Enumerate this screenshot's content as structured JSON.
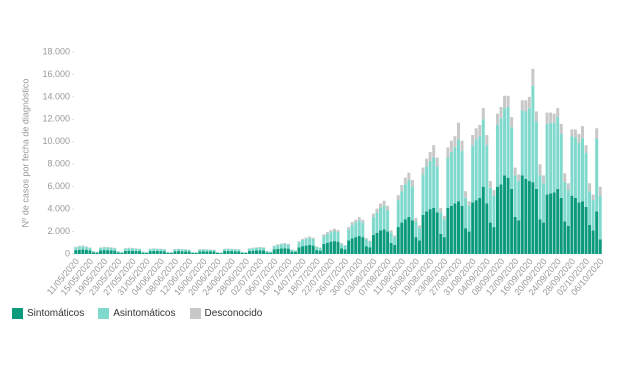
{
  "chart_data": {
    "type": "bar",
    "stacked": true,
    "grid": false,
    "y_label": "Nº de casos por fecha de diagnóstico",
    "legend_position": "bottom-left",
    "ylim": [
      0,
      18000
    ],
    "yticks": [
      0,
      {
        "value": 2000,
        "label": "2.000"
      },
      {
        "value": 4000,
        "label": "4.000"
      },
      {
        "value": 6000,
        "label": "6.000"
      },
      {
        "value": 8000,
        "label": "8.000"
      },
      {
        "value": 10000,
        "label": "10.000"
      },
      {
        "value": 12000,
        "label": "12.000"
      },
      {
        "value": 14000,
        "label": "14.000"
      },
      {
        "value": 16000,
        "label": "16.000"
      },
      {
        "value": 18000,
        "label": "18.000"
      }
    ],
    "categories": [
      "11/05/2020",
      null,
      null,
      null,
      "15/05/2020",
      null,
      null,
      null,
      "19/05/2020",
      null,
      null,
      null,
      "23/05/2020",
      null,
      null,
      null,
      "27/05/2020",
      null,
      null,
      null,
      "31/05/2020",
      null,
      null,
      null,
      "04/06/2020",
      null,
      null,
      null,
      "08/06/2020",
      null,
      null,
      null,
      "12/06/2020",
      null,
      null,
      null,
      "16/06/2020",
      null,
      null,
      null,
      "20/06/2020",
      null,
      null,
      null,
      "24/06/2020",
      null,
      null,
      null,
      "28/06/2020",
      null,
      null,
      null,
      "02/07/2020",
      null,
      null,
      null,
      "06/07/2020",
      null,
      null,
      null,
      "10/07/2020",
      null,
      null,
      null,
      "14/07/2020",
      null,
      null,
      null,
      "18/07/2020",
      null,
      null,
      null,
      "22/07/2020",
      null,
      null,
      null,
      "26/07/2020",
      null,
      null,
      null,
      "30/07/2020",
      null,
      null,
      null,
      "03/08/2020",
      null,
      null,
      null,
      "07/08/2020",
      null,
      null,
      null,
      "11/08/2020",
      null,
      null,
      null,
      "15/08/2020",
      null,
      null,
      null,
      "19/08/2020",
      null,
      null,
      null,
      "23/08/2020",
      null,
      null,
      null,
      "27/08/2020",
      null,
      null,
      null,
      "31/08/2020",
      null,
      null,
      null,
      "04/09/2020",
      null,
      null,
      null,
      "08/09/2020",
      null,
      null,
      null,
      "12/09/2020",
      null,
      null,
      null,
      "16/09/2020",
      null,
      null,
      null,
      "20/09/2020",
      null,
      null,
      null,
      "24/09/2020",
      null,
      null,
      null,
      "28/09/2020",
      null,
      null,
      null,
      "02/10/2020",
      null,
      null,
      null,
      "06/10/2020"
    ],
    "series": [
      {
        "name": "Sintomáticos",
        "color": "#0b9a7b",
        "values": [
          350,
          380,
          400,
          360,
          320,
          150,
          120,
          320,
          350,
          340,
          330,
          300,
          130,
          110,
          280,
          300,
          290,
          280,
          260,
          120,
          100,
          260,
          280,
          270,
          260,
          240,
          110,
          90,
          250,
          260,
          250,
          240,
          230,
          100,
          90,
          240,
          250,
          240,
          230,
          220,
          100,
          80,
          260,
          270,
          260,
          250,
          240,
          110,
          90,
          280,
          300,
          320,
          330,
          320,
          150,
          120,
          400,
          450,
          500,
          520,
          480,
          220,
          180,
          600,
          700,
          750,
          800,
          750,
          350,
          300,
          900,
          1000,
          1100,
          1150,
          1100,
          500,
          420,
          1200,
          1400,
          1500,
          1600,
          1500,
          700,
          600,
          1700,
          1900,
          2100,
          2200,
          2000,
          1000,
          800,
          2400,
          2800,
          3100,
          3300,
          3000,
          1500,
          1200,
          3500,
          3800,
          4000,
          4100,
          3700,
          1800,
          1500,
          4100,
          4300,
          4500,
          4700,
          4300,
          2300,
          2000,
          4600,
          4800,
          5000,
          6000,
          4500,
          2800,
          2400,
          6000,
          6200,
          7000,
          6800,
          5800,
          3300,
          3000,
          7000,
          6700,
          6500,
          6400,
          5800,
          3100,
          2800,
          5300,
          5400,
          5500,
          5800,
          5000,
          2900,
          2500,
          5200,
          5000,
          4600,
          4700,
          4200,
          2600,
          2100,
          3800,
          1300
        ]
      },
      {
        "name": "Asintomáticos",
        "color": "#80d9cd",
        "values": [
          250,
          280,
          300,
          260,
          230,
          100,
          80,
          230,
          250,
          240,
          230,
          200,
          90,
          70,
          200,
          220,
          210,
          200,
          180,
          80,
          60,
          180,
          200,
          190,
          180,
          170,
          70,
          60,
          170,
          180,
          170,
          160,
          150,
          70,
          50,
          160,
          170,
          160,
          160,
          150,
          70,
          50,
          180,
          190,
          180,
          170,
          160,
          80,
          60,
          200,
          220,
          240,
          250,
          240,
          110,
          90,
          300,
          350,
          380,
          400,
          360,
          160,
          130,
          450,
          550,
          600,
          650,
          600,
          280,
          230,
          700,
          800,
          850,
          900,
          850,
          380,
          320,
          1000,
          1200,
          1300,
          1400,
          1300,
          600,
          500,
          1600,
          1800,
          2000,
          2100,
          1900,
          900,
          700,
          2400,
          2800,
          3100,
          3300,
          3000,
          1400,
          1100,
          3600,
          4000,
          4300,
          4500,
          4100,
          1900,
          1600,
          4500,
          4800,
          5000,
          5500,
          4900,
          2700,
          2300,
          5100,
          5400,
          5500,
          6000,
          5200,
          3100,
          2800,
          5500,
          5900,
          6000,
          6300,
          5500,
          3700,
          3500,
          5800,
          6000,
          6500,
          8600,
          6000,
          3900,
          3500,
          6300,
          6300,
          6200,
          6400,
          5700,
          3500,
          3200,
          5300,
          5400,
          5300,
          5600,
          4800,
          3000,
          2700,
          6500,
          3900
        ]
      },
      {
        "name": "Desconocido",
        "color": "#c8c8c8",
        "values": [
          50,
          60,
          60,
          50,
          40,
          20,
          20,
          40,
          50,
          40,
          40,
          40,
          20,
          10,
          40,
          40,
          40,
          30,
          30,
          10,
          10,
          30,
          30,
          30,
          30,
          30,
          10,
          10,
          30,
          30,
          30,
          30,
          20,
          10,
          10,
          30,
          30,
          20,
          20,
          20,
          10,
          10,
          30,
          30,
          30,
          30,
          20,
          10,
          10,
          30,
          40,
          40,
          40,
          40,
          20,
          10,
          50,
          60,
          60,
          60,
          60,
          30,
          20,
          80,
          100,
          120,
          120,
          100,
          50,
          40,
          150,
          160,
          180,
          200,
          180,
          80,
          60,
          200,
          250,
          250,
          280,
          250,
          120,
          100,
          300,
          350,
          400,
          450,
          400,
          200,
          150,
          450,
          550,
          600,
          650,
          600,
          300,
          250,
          600,
          700,
          800,
          1100,
          800,
          400,
          300,
          900,
          1000,
          1000,
          1500,
          900,
          600,
          400,
          900,
          1000,
          1000,
          1000,
          900,
          600,
          500,
          1000,
          1000,
          1100,
          1000,
          900,
          700,
          600,
          900,
          1000,
          1000,
          1500,
          900,
          1000,
          700,
          1000,
          900,
          800,
          800,
          900,
          800,
          600,
          600,
          700,
          800,
          1100,
          700,
          700,
          500,
          900,
          800
        ]
      }
    ]
  }
}
